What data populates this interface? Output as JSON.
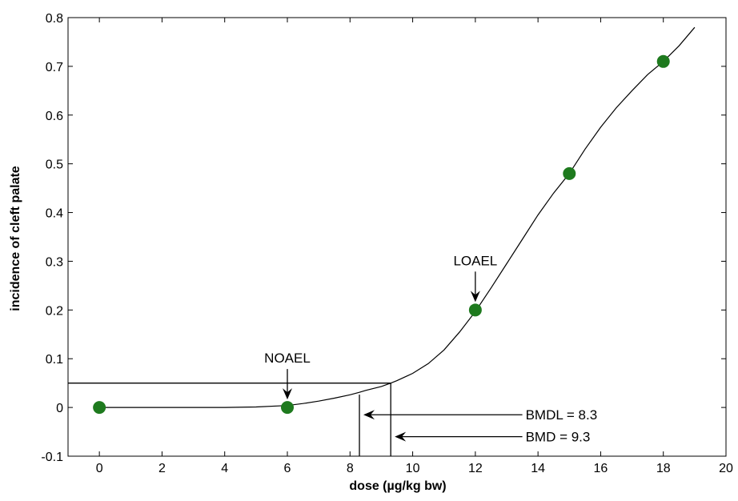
{
  "chart_data": {
    "type": "scatter",
    "title": "",
    "xlabel": "dose (µg/kg bw)",
    "ylabel": "incidence of cleft palate",
    "xlim": [
      -1,
      20
    ],
    "ylim": [
      -0.1,
      0.8
    ],
    "xticks": [
      0,
      2,
      4,
      6,
      8,
      10,
      12,
      14,
      16,
      18,
      20
    ],
    "yticks": [
      -0.1,
      0,
      0.1,
      0.2,
      0.3,
      0.4,
      0.5,
      0.6,
      0.7,
      0.8
    ],
    "grid": false,
    "legend": "none",
    "series": [
      {
        "kind": "scatter",
        "x": [
          0,
          6,
          12,
          15,
          18
        ],
        "y": [
          0,
          0,
          0.2,
          0.48,
          0.71
        ],
        "color": "#1e7a1e"
      },
      {
        "kind": "line",
        "x": [
          0,
          2,
          4,
          5,
          6,
          6.5,
          7,
          7.5,
          8,
          8.3,
          8.5,
          9,
          9.3,
          9.5,
          10,
          10.5,
          11,
          11.5,
          12,
          12.5,
          13,
          13.5,
          14,
          14.5,
          15,
          15.5,
          16,
          16.5,
          17,
          17.5,
          18,
          18.5,
          19
        ],
        "y": [
          0,
          0,
          0,
          0.001,
          0.004,
          0.008,
          0.013,
          0.019,
          0.026,
          0.031,
          0.035,
          0.043,
          0.05,
          0.055,
          0.07,
          0.09,
          0.118,
          0.155,
          0.197,
          0.245,
          0.295,
          0.345,
          0.395,
          0.44,
          0.48,
          0.53,
          0.575,
          0.615,
          0.65,
          0.683,
          0.71,
          0.742,
          0.78
        ],
        "color": "#000000"
      }
    ],
    "reference_lines": {
      "bmr_y": 0.05,
      "bmdl_x": 8.3,
      "bmd_x": 9.3,
      "y_bottom": -0.1,
      "x_left": -1
    },
    "annotations": [
      {
        "text": "NOAEL",
        "target_x": 6,
        "target_y": 0
      },
      {
        "text": "LOAEL",
        "target_x": 12,
        "target_y": 0.2
      },
      {
        "text": "BMDL = 8.3",
        "target_x": 8.3,
        "target_y": -0.015
      },
      {
        "text": "BMD = 9.3",
        "target_x": 9.3,
        "target_y": -0.06
      }
    ]
  }
}
